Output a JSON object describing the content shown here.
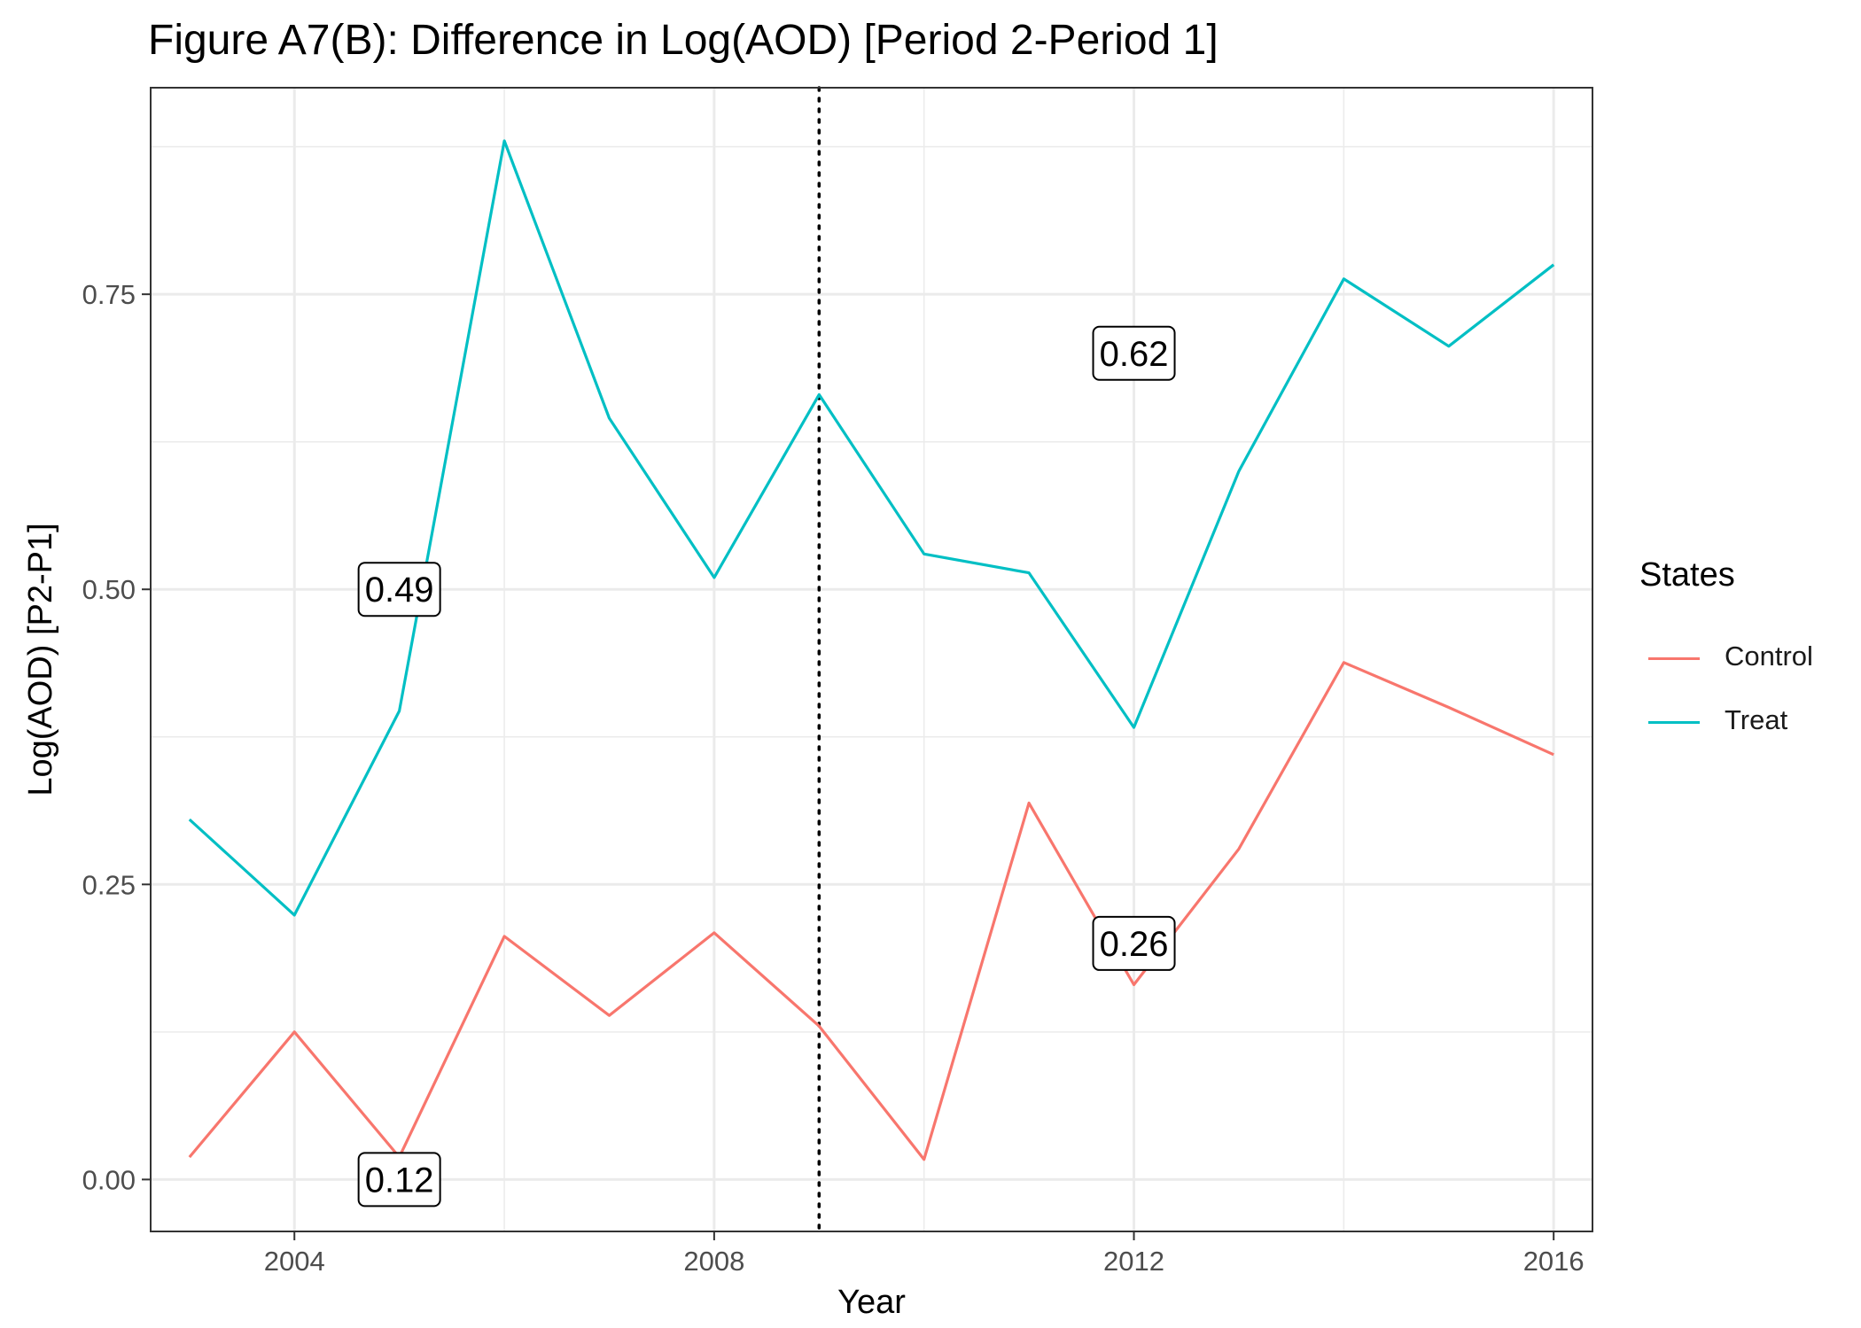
{
  "title": "Figure A7(B): Difference in Log(AOD) [Period 2-Period 1]",
  "chart_data": {
    "type": "line",
    "title": "Figure A7(B): Difference in Log(AOD) [Period 2-Period 1]",
    "xlabel": "Year",
    "ylabel": "Log(AOD) [P2-P1]",
    "x": [
      2003,
      2004,
      2005,
      2006,
      2007,
      2008,
      2009,
      2010,
      2011,
      2012,
      2013,
      2014,
      2015,
      2016
    ],
    "series": [
      {
        "name": "Control",
        "color": "#F8766D",
        "values": [
          0.019,
          0.125,
          0.019,
          0.206,
          0.139,
          0.209,
          0.13,
          0.017,
          0.319,
          0.165,
          0.28,
          0.438,
          0.4,
          0.36
        ]
      },
      {
        "name": "Treat",
        "color": "#00BFC4",
        "values": [
          0.305,
          0.224,
          0.397,
          0.88,
          0.645,
          0.51,
          0.665,
          0.53,
          0.514,
          0.383,
          0.6,
          0.763,
          0.706,
          0.775
        ]
      }
    ],
    "xlim": [
      2002.63,
      2016.37
    ],
    "ylim": [
      -0.044,
      0.925
    ],
    "xticks": [
      2004,
      2008,
      2012,
      2016
    ],
    "yticks": [
      0.0,
      0.25,
      0.5,
      0.75
    ],
    "ytick_labels": [
      "0.00",
      "0.25",
      "0.50",
      "0.75"
    ],
    "vline": {
      "x": 2009,
      "style": "dotted"
    },
    "annotations": [
      {
        "text": "0.49",
        "x": 2005,
        "y": 0.5
      },
      {
        "text": "0.12",
        "x": 2005,
        "y": 0.0
      },
      {
        "text": "0.62",
        "x": 2012,
        "y": 0.7
      },
      {
        "text": "0.26",
        "x": 2012,
        "y": 0.2
      }
    ],
    "legend": {
      "title": "States",
      "position": "right"
    },
    "grid": true
  }
}
